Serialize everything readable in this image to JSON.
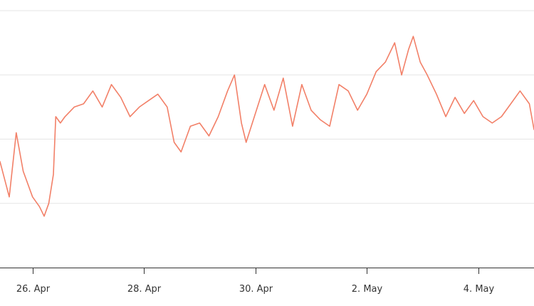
{
  "chart_data": {
    "type": "line",
    "title": "",
    "xlabel": "",
    "ylabel": "",
    "x_axis_type": "datetime",
    "grid": true,
    "legend": "none",
    "x_ticks": [
      "26. Apr",
      "28. Apr",
      "30. Apr",
      "2. May",
      "4. May"
    ],
    "x_range": [
      "2024-04-25T10:00",
      "2024-05-05T00:00"
    ],
    "y_range": [
      0,
      4
    ],
    "series": [
      {
        "color": "#f28068",
        "points": [
          [
            "2024-04-25T10:00",
            1.65
          ],
          [
            "2024-04-25T14:00",
            1.1
          ],
          [
            "2024-04-25T17:00",
            2.1
          ],
          [
            "2024-04-25T20:00",
            1.5
          ],
          [
            "2024-04-26T00:00",
            1.1
          ],
          [
            "2024-04-26T03:00",
            0.95
          ],
          [
            "2024-04-26T05:00",
            0.8
          ],
          [
            "2024-04-26T07:00",
            1.0
          ],
          [
            "2024-04-26T09:00",
            1.45
          ],
          [
            "2024-04-26T10:00",
            2.35
          ],
          [
            "2024-04-26T12:00",
            2.25
          ],
          [
            "2024-04-26T14:00",
            2.35
          ],
          [
            "2024-04-26T18:00",
            2.5
          ],
          [
            "2024-04-26T22:00",
            2.55
          ],
          [
            "2024-04-27T02:00",
            2.75
          ],
          [
            "2024-04-27T06:00",
            2.5
          ],
          [
            "2024-04-27T10:00",
            2.85
          ],
          [
            "2024-04-27T14:00",
            2.65
          ],
          [
            "2024-04-27T18:00",
            2.35
          ],
          [
            "2024-04-27T22:00",
            2.5
          ],
          [
            "2024-04-28T02:00",
            2.6
          ],
          [
            "2024-04-28T06:00",
            2.7
          ],
          [
            "2024-04-28T10:00",
            2.5
          ],
          [
            "2024-04-28T13:00",
            1.95
          ],
          [
            "2024-04-28T16:00",
            1.8
          ],
          [
            "2024-04-28T20:00",
            2.2
          ],
          [
            "2024-04-29T00:00",
            2.25
          ],
          [
            "2024-04-29T04:00",
            2.05
          ],
          [
            "2024-04-29T08:00",
            2.35
          ],
          [
            "2024-04-29T12:00",
            2.75
          ],
          [
            "2024-04-29T15:00",
            3.0
          ],
          [
            "2024-04-29T18:00",
            2.25
          ],
          [
            "2024-04-29T20:00",
            1.95
          ],
          [
            "2024-04-30T00:00",
            2.4
          ],
          [
            "2024-04-30T04:00",
            2.85
          ],
          [
            "2024-04-30T08:00",
            2.45
          ],
          [
            "2024-04-30T12:00",
            2.95
          ],
          [
            "2024-04-30T16:00",
            2.2
          ],
          [
            "2024-04-30T20:00",
            2.85
          ],
          [
            "2024-05-01T00:00",
            2.45
          ],
          [
            "2024-05-01T04:00",
            2.3
          ],
          [
            "2024-05-01T08:00",
            2.2
          ],
          [
            "2024-05-01T12:00",
            2.85
          ],
          [
            "2024-05-01T16:00",
            2.75
          ],
          [
            "2024-05-01T20:00",
            2.45
          ],
          [
            "2024-05-02T00:00",
            2.7
          ],
          [
            "2024-05-02T04:00",
            3.05
          ],
          [
            "2024-05-02T08:00",
            3.2
          ],
          [
            "2024-05-02T12:00",
            3.5
          ],
          [
            "2024-05-02T15:00",
            3.0
          ],
          [
            "2024-05-02T18:00",
            3.4
          ],
          [
            "2024-05-02T20:00",
            3.6
          ],
          [
            "2024-05-02T23:00",
            3.2
          ],
          [
            "2024-05-03T02:00",
            3.0
          ],
          [
            "2024-05-03T06:00",
            2.7
          ],
          [
            "2024-05-03T10:00",
            2.35
          ],
          [
            "2024-05-03T14:00",
            2.65
          ],
          [
            "2024-05-03T18:00",
            2.4
          ],
          [
            "2024-05-03T22:00",
            2.6
          ],
          [
            "2024-05-04T02:00",
            2.35
          ],
          [
            "2024-05-04T06:00",
            2.25
          ],
          [
            "2024-05-04T10:00",
            2.35
          ],
          [
            "2024-05-04T14:00",
            2.55
          ],
          [
            "2024-05-04T18:00",
            2.75
          ],
          [
            "2024-05-04T22:00",
            2.55
          ],
          [
            "2024-05-05T00:00",
            2.15
          ]
        ]
      }
    ]
  }
}
